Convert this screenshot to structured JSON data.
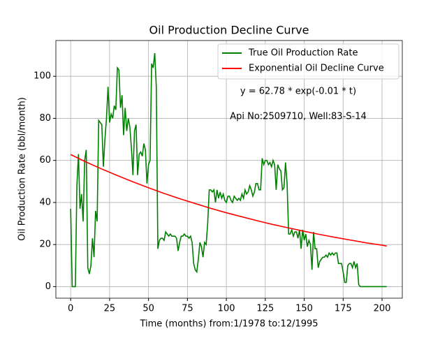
{
  "chart_data": {
    "type": "line",
    "title": "Oil Production Decline Curve",
    "xlabel": "Time (months) from:1/1978 to:12/1995",
    "ylabel": "Oil Production Rate (bbl/month)",
    "annotations": [
      "y = 62.78 * exp(-0.01 * t)",
      "Api No:2509710, Well:83-S-14"
    ],
    "xlim": [
      -9.5,
      213
    ],
    "ylim": [
      -5.5,
      117
    ],
    "xticks": [
      0,
      25,
      50,
      75,
      100,
      125,
      150,
      175,
      200
    ],
    "yticks": [
      0,
      20,
      40,
      60,
      80,
      100
    ],
    "grid": true,
    "legend": "upper right",
    "series": [
      {
        "name": "True Oil Production Rate",
        "color": "#008000",
        "x": [
          0,
          1,
          2,
          3,
          4,
          5,
          6,
          7,
          8,
          9,
          10,
          11,
          12,
          13,
          14,
          15,
          16,
          17,
          18,
          19,
          20,
          21,
          22,
          23,
          24,
          25,
          26,
          27,
          28,
          29,
          30,
          31,
          32,
          33,
          34,
          35,
          36,
          37,
          38,
          39,
          40,
          41,
          42,
          43,
          44,
          45,
          46,
          47,
          48,
          49,
          50,
          51,
          52,
          53,
          54,
          55,
          56,
          57,
          58,
          59,
          60,
          61,
          62,
          63,
          64,
          65,
          66,
          67,
          68,
          69,
          70,
          71,
          72,
          73,
          74,
          75,
          76,
          77,
          78,
          79,
          80,
          81,
          82,
          83,
          84,
          85,
          86,
          87,
          88,
          89,
          90,
          91,
          92,
          93,
          94,
          95,
          96,
          97,
          98,
          99,
          100,
          101,
          102,
          103,
          104,
          105,
          106,
          107,
          108,
          109,
          110,
          111,
          112,
          113,
          114,
          115,
          116,
          117,
          118,
          119,
          120,
          121,
          122,
          123,
          124,
          125,
          126,
          127,
          128,
          129,
          130,
          131,
          132,
          133,
          134,
          135,
          136,
          137,
          138,
          139,
          140,
          141,
          142,
          143,
          144,
          145,
          146,
          147,
          148,
          149,
          150,
          151,
          152,
          153,
          154,
          155,
          156,
          157,
          158,
          159,
          160,
          161,
          162,
          163,
          164,
          165,
          166,
          167,
          168,
          169,
          170,
          171,
          172,
          173,
          174,
          175,
          176,
          177,
          178,
          179,
          180,
          181,
          182,
          183,
          184,
          185,
          186,
          203
        ],
        "values": [
          37,
          0,
          0,
          0,
          48,
          63,
          37,
          44,
          31,
          60,
          65,
          9,
          6,
          10,
          23,
          14,
          36,
          31,
          79,
          78,
          77,
          57,
          70,
          80,
          95,
          78,
          82,
          80,
          86,
          84,
          104,
          103,
          85,
          91,
          72,
          85,
          74,
          80,
          76,
          66,
          53,
          74,
          77,
          53,
          63,
          64,
          62,
          68,
          65,
          49,
          58,
          60,
          106,
          104,
          111,
          95,
          18,
          22,
          23,
          23,
          22,
          26,
          25,
          24,
          25,
          24,
          24,
          24,
          23,
          17,
          21,
          24,
          24,
          25,
          24,
          24,
          23,
          24,
          21,
          11,
          8,
          7,
          13,
          21,
          19,
          14,
          21,
          20,
          30,
          46,
          46,
          45,
          46,
          40,
          46,
          42,
          45,
          42,
          44,
          41,
          40,
          43,
          43,
          41,
          40,
          43,
          42,
          41,
          42,
          41,
          44,
          42,
          46,
          44,
          45,
          48,
          46,
          43,
          45,
          49,
          49,
          46,
          46,
          61,
          58,
          60,
          60,
          58,
          59,
          57,
          60,
          58,
          46,
          58,
          56,
          55,
          46,
          47,
          59,
          49,
          25,
          25,
          27,
          24,
          26,
          26,
          23,
          27,
          18,
          27,
          22,
          25,
          19,
          22,
          20,
          8,
          26,
          18,
          18,
          9,
          12,
          13,
          14,
          14,
          15,
          14,
          16,
          15,
          16,
          15,
          16,
          16,
          11,
          11,
          11,
          7,
          2,
          2,
          10,
          11,
          11,
          9,
          12,
          9,
          11,
          1,
          0,
          0
        ]
      },
      {
        "name": "Exponential Oil Decline Curve",
        "color": "#ff0000",
        "x": [
          0,
          10,
          20,
          30,
          40,
          50,
          60,
          70,
          80,
          90,
          100,
          110,
          120,
          130,
          140,
          150,
          160,
          170,
          180,
          190,
          200,
          203
        ],
        "values": [
          62.8,
          59.2,
          55.9,
          52.8,
          49.8,
          47.0,
          44.3,
          41.8,
          39.5,
          37.2,
          35.1,
          33.2,
          31.3,
          29.5,
          27.9,
          26.3,
          24.8,
          23.4,
          22.1,
          20.8,
          19.7,
          19.3
        ]
      }
    ]
  }
}
